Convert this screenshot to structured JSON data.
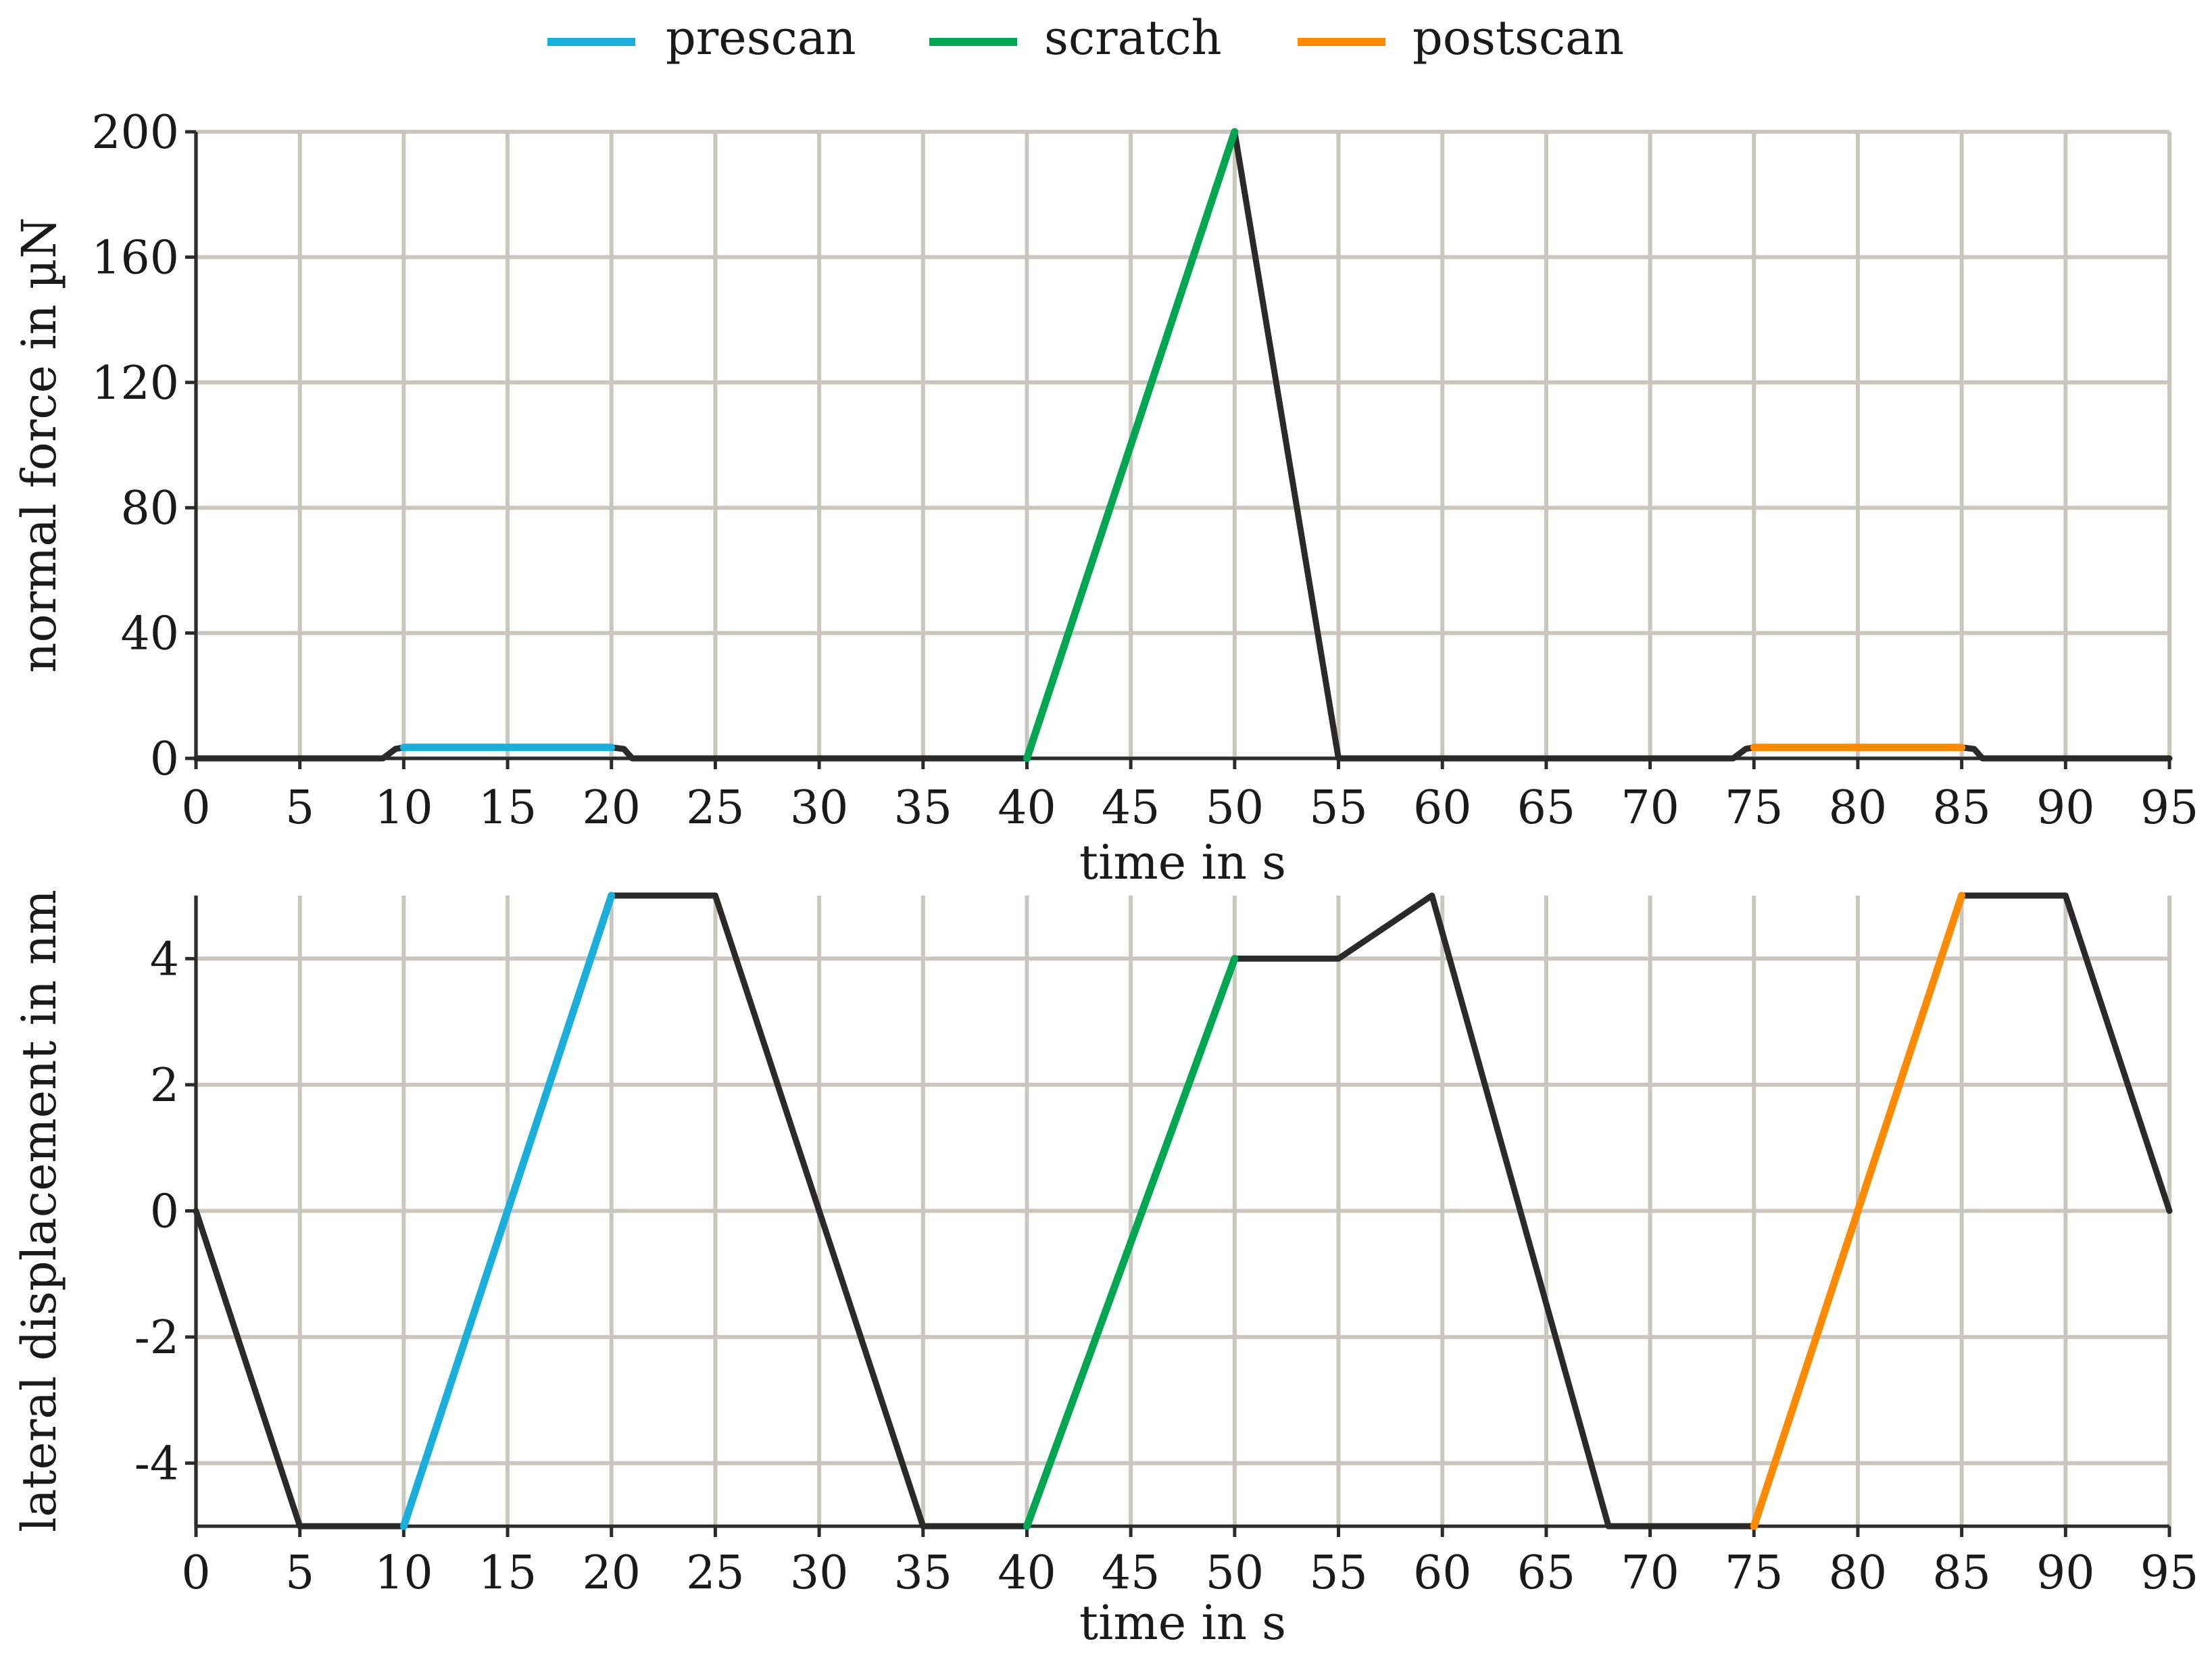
{
  "legend": [
    {
      "label": "prescan",
      "color": "#1aaedb"
    },
    {
      "label": "scratch",
      "color": "#00a651"
    },
    {
      "label": "postscan",
      "color": "#ff8a00"
    }
  ],
  "chart_data": [
    {
      "type": "line",
      "xlabel": "time in s",
      "ylabel": "normal force in µN",
      "xlim": [
        0,
        95
      ],
      "ylim": [
        0,
        200
      ],
      "xticks": [
        "0",
        "5",
        "10",
        "15",
        "20",
        "25",
        "30",
        "35",
        "40",
        "45",
        "50",
        "55",
        "60",
        "65",
        "70",
        "75",
        "80",
        "85",
        "90",
        "95"
      ],
      "yticks": [
        "0",
        "40",
        "80",
        "120",
        "160",
        "200"
      ],
      "grid": true,
      "base_color": "#2a2a2a",
      "series": [
        {
          "x": [
            0,
            9,
            9.6,
            10,
            20,
            20.6,
            21,
            40,
            50,
            55,
            74,
            74.6,
            75,
            85,
            85.6,
            86,
            95
          ],
          "y": [
            0,
            0,
            3,
            3.5,
            3.5,
            3,
            0,
            0,
            200,
            0,
            0,
            3,
            3.5,
            3.5,
            3,
            0,
            0
          ],
          "color": "#2a2a2a"
        },
        {
          "name": "prescan",
          "x": [
            10,
            20
          ],
          "y": [
            3.5,
            3.5
          ],
          "color": "#1aaedb"
        },
        {
          "name": "scratch",
          "x": [
            40,
            50
          ],
          "y": [
            0,
            200
          ],
          "color": "#00a651"
        },
        {
          "name": "postscan",
          "x": [
            75,
            85
          ],
          "y": [
            3.5,
            3.5
          ],
          "color": "#ff8a00"
        }
      ]
    },
    {
      "type": "line",
      "xlabel": "time in s",
      "ylabel": "lateral displacement in nm",
      "xlim": [
        0,
        95
      ],
      "ylim": [
        -5,
        5
      ],
      "xticks": [
        "0",
        "5",
        "10",
        "15",
        "20",
        "25",
        "30",
        "35",
        "40",
        "45",
        "50",
        "55",
        "60",
        "65",
        "70",
        "75",
        "80",
        "85",
        "90",
        "95"
      ],
      "yticks": [
        "-4",
        "-2",
        "0",
        "2",
        "4"
      ],
      "grid": true,
      "base_color": "#2a2a2a",
      "series": [
        {
          "x": [
            0,
            5,
            10,
            20,
            25,
            35,
            40,
            50,
            55,
            59.5,
            68,
            75,
            85,
            90,
            95
          ],
          "y": [
            0,
            -5,
            -5,
            5,
            5,
            -5,
            -5,
            4,
            4,
            5,
            -5,
            -5,
            5,
            5,
            0
          ],
          "color": "#2a2a2a"
        },
        {
          "name": "prescan",
          "x": [
            10,
            20
          ],
          "y": [
            -5,
            5
          ],
          "color": "#1aaedb"
        },
        {
          "name": "scratch",
          "x": [
            40,
            50
          ],
          "y": [
            -5,
            4
          ],
          "color": "#00a651"
        },
        {
          "name": "postscan",
          "x": [
            75,
            85
          ],
          "y": [
            -5,
            5
          ],
          "color": "#ff8a00"
        }
      ]
    }
  ]
}
